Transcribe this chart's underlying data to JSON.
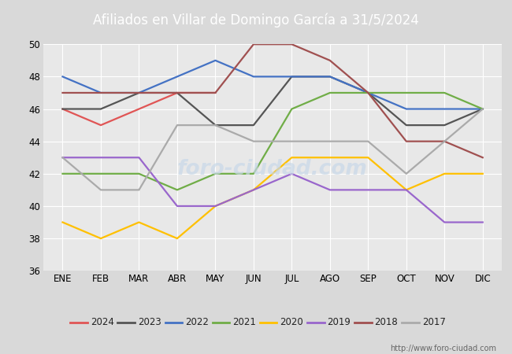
{
  "title": "Afiliados en Villar de Domingo García a 31/5/2024",
  "header_bg": "#5b8dd9",
  "months": [
    "ENE",
    "FEB",
    "MAR",
    "ABR",
    "MAY",
    "JUN",
    "JUL",
    "AGO",
    "SEP",
    "OCT",
    "NOV",
    "DIC"
  ],
  "ylim": [
    36,
    50
  ],
  "yticks": [
    36,
    38,
    40,
    42,
    44,
    46,
    48,
    50
  ],
  "years": [
    "2024",
    "2023",
    "2022",
    "2021",
    "2020",
    "2019",
    "2018",
    "2017"
  ],
  "series": {
    "2024": {
      "color": "#e05555",
      "data": [
        46,
        45,
        46,
        47,
        47,
        null,
        null,
        null,
        null,
        null,
        null,
        null
      ]
    },
    "2023": {
      "color": "#555555",
      "data": [
        46,
        46,
        47,
        47,
        45,
        45,
        48,
        48,
        47,
        45,
        45,
        46
      ]
    },
    "2022": {
      "color": "#4472c4",
      "data": [
        48,
        47,
        47,
        48,
        49,
        48,
        48,
        48,
        47,
        46,
        46,
        46
      ]
    },
    "2021": {
      "color": "#70ad47",
      "data": [
        42,
        42,
        42,
        41,
        42,
        42,
        46,
        47,
        47,
        47,
        47,
        46
      ]
    },
    "2020": {
      "color": "#ffc000",
      "data": [
        39,
        38,
        39,
        38,
        40,
        41,
        43,
        43,
        43,
        41,
        42,
        42
      ]
    },
    "2019": {
      "color": "#9966cc",
      "data": [
        43,
        43,
        43,
        40,
        40,
        41,
        42,
        41,
        41,
        41,
        39,
        39
      ]
    },
    "2018": {
      "color": "#a05050",
      "data": [
        47,
        47,
        47,
        47,
        47,
        50,
        50,
        49,
        47,
        44,
        44,
        43
      ]
    },
    "2017": {
      "color": "#aaaaaa",
      "data": [
        43,
        41,
        41,
        45,
        45,
        44,
        44,
        44,
        44,
        42,
        44,
        46
      ]
    }
  },
  "watermark": "foro-ciudad.com",
  "watermark_color": "#c8d8e8",
  "url": "http://www.foro-ciudad.com",
  "bg_color": "#d9d9d9",
  "plot_bg": "#e8e8e8",
  "grid_color": "#ffffff"
}
